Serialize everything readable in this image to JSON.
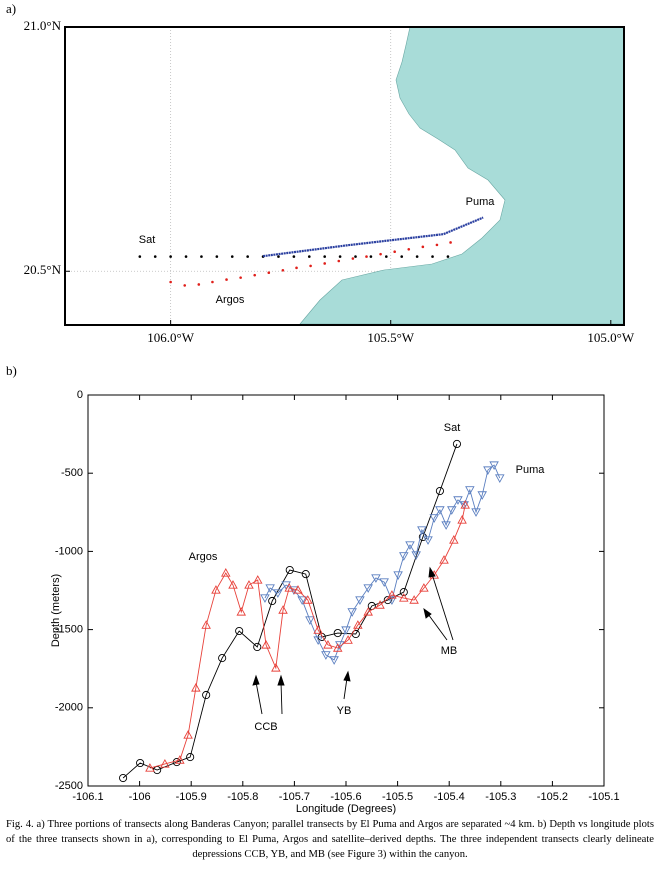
{
  "chart_data": [
    {
      "type": "map",
      "panel": "a)",
      "xlim": [
        -106.24,
        -104.97
      ],
      "ylim": [
        20.39,
        21.0
      ],
      "xticks": [
        {
          "value": -106.0,
          "label": "106.0°W"
        },
        {
          "value": -105.5,
          "label": "105.5°W"
        },
        {
          "value": -105.0,
          "label": "105.0°W"
        }
      ],
      "yticks": [
        {
          "value": 20.5,
          "label": "20.5°N"
        },
        {
          "value": 21.0,
          "label": "21.0°N"
        }
      ],
      "grid": true,
      "series": [
        {
          "name": "Sat",
          "color": "#000000",
          "style": "dots",
          "x": [
            -106.07,
            -106.035,
            -106.0,
            -105.965,
            -105.93,
            -105.895,
            -105.86,
            -105.825,
            -105.79,
            -105.755,
            -105.72,
            -105.685,
            -105.65,
            -105.615,
            -105.58,
            -105.545,
            -105.51,
            -105.475,
            -105.44,
            -105.405,
            -105.37
          ],
          "values": [
            20.53,
            20.53,
            20.53,
            20.53,
            20.53,
            20.53,
            20.53,
            20.53,
            20.53,
            20.53,
            20.53,
            20.53,
            20.53,
            20.53,
            20.53,
            20.53,
            20.53,
            20.53,
            20.53,
            20.53,
            20.53
          ]
        },
        {
          "name": "Puma",
          "color": "#2a3fa0",
          "style": "line",
          "x": [
            -105.79,
            -105.6,
            -105.38,
            -105.29
          ],
          "values": [
            20.531,
            20.553,
            20.576,
            20.61
          ]
        },
        {
          "name": "Argos",
          "color": "#e0201b",
          "style": "dots",
          "x": [
            -106.0,
            -105.968,
            -105.936,
            -105.905,
            -105.873,
            -105.841,
            -105.809,
            -105.777,
            -105.745,
            -105.714,
            -105.682,
            -105.65,
            -105.618,
            -105.586,
            -105.555,
            -105.523,
            -105.491,
            -105.459,
            -105.427,
            -105.395,
            -105.364
          ],
          "values": [
            20.478,
            20.471,
            20.473,
            20.478,
            20.483,
            20.487,
            20.492,
            20.497,
            20.502,
            20.507,
            20.511,
            20.516,
            20.521,
            20.526,
            20.53,
            20.535,
            20.54,
            20.545,
            20.55,
            20.554,
            20.559
          ]
        }
      ]
    },
    {
      "type": "line",
      "panel": "b)",
      "x_label": "Longitude (Degrees)",
      "y_label": "Depth (meters)",
      "xlim": [
        -106.1,
        -105.1
      ],
      "ylim": [
        -2500,
        0
      ],
      "xticks": [
        -106.1,
        -106,
        -105.9,
        -105.8,
        -105.7,
        -105.6,
        -105.5,
        -105.4,
        -105.3,
        -105.2,
        -105.1
      ],
      "yticks": [
        -2500,
        -2000,
        -1500,
        -1000,
        -500,
        0
      ],
      "grid": false,
      "annotations": [
        "CCB",
        "YB",
        "MB"
      ],
      "series": [
        {
          "name": "Sat",
          "color": "#000000",
          "marker": "circle",
          "x": [
            -106.032,
            -105.999,
            -105.966,
            -105.928,
            -105.902,
            -105.871,
            -105.84,
            -105.807,
            -105.772,
            -105.743,
            -105.709,
            -105.678,
            -105.647,
            -105.616,
            -105.581,
            -105.55,
            -105.519,
            -105.488,
            -105.451,
            -105.418,
            -105.385
          ],
          "values": [
            -2449,
            -2353,
            -2398,
            -2347,
            -2315,
            -1918,
            -1682,
            -1509,
            -1611,
            -1317,
            -1119,
            -1145,
            -1547,
            -1522,
            -1528,
            -1349,
            -1311,
            -1260,
            -908,
            -614,
            -313
          ]
        },
        {
          "name": "Puma",
          "color": "#5b7fc0",
          "marker": "triangle-down",
          "x": [
            -105.757,
            -105.747,
            -105.732,
            -105.716,
            -105.701,
            -105.685,
            -105.67,
            -105.654,
            -105.639,
            -105.623,
            -105.612,
            -105.6,
            -105.588,
            -105.573,
            -105.557,
            -105.542,
            -105.526,
            -105.511,
            -105.499,
            -105.488,
            -105.476,
            -105.464,
            -105.453,
            -105.441,
            -105.429,
            -105.418,
            -105.406,
            -105.395,
            -105.383,
            -105.371,
            -105.36,
            -105.348,
            -105.336,
            -105.325,
            -105.313,
            -105.302
          ],
          "values": [
            -1298,
            -1234,
            -1266,
            -1215,
            -1247,
            -1311,
            -1439,
            -1567,
            -1662,
            -1694,
            -1598,
            -1503,
            -1387,
            -1311,
            -1234,
            -1170,
            -1196,
            -1311,
            -1151,
            -1029,
            -959,
            -1023,
            -863,
            -927,
            -786,
            -735,
            -831,
            -735,
            -671,
            -703,
            -607,
            -748,
            -639,
            -480,
            -448,
            -531
          ]
        },
        {
          "name": "Argos",
          "color": "#e8413a",
          "marker": "triangle-up",
          "x": [
            -105.98,
            -105.951,
            -105.922,
            -105.906,
            -105.891,
            -105.871,
            -105.852,
            -105.833,
            -105.819,
            -105.803,
            -105.788,
            -105.771,
            -105.755,
            -105.736,
            -105.722,
            -105.71,
            -105.693,
            -105.674,
            -105.654,
            -105.635,
            -105.616,
            -105.596,
            -105.577,
            -105.557,
            -105.534,
            -105.511,
            -105.488,
            -105.468,
            -105.449,
            -105.429,
            -105.41,
            -105.391,
            -105.375,
            -105.369
          ],
          "values": [
            -2385,
            -2359,
            -2334,
            -2174,
            -1873,
            -1471,
            -1247,
            -1138,
            -1215,
            -1387,
            -1215,
            -1183,
            -1598,
            -1745,
            -1375,
            -1234,
            -1247,
            -1311,
            -1503,
            -1598,
            -1618,
            -1567,
            -1471,
            -1387,
            -1343,
            -1279,
            -1298,
            -1311,
            -1234,
            -1151,
            -1055,
            -927,
            -799,
            -703
          ]
        }
      ]
    }
  ],
  "caption": "Fig. 4. a) Three portions of transects along Banderas Canyon; parallel transects by El Puma and Argos are separated ~4 km. b) Depth vs longitude plots of the three transects shown in a), corresponding to El Puma, Argos and satellite–derived depths. The three independent transects clearly delineate depressions CCB, YB, and MB (see Figure 3) within the canyon."
}
